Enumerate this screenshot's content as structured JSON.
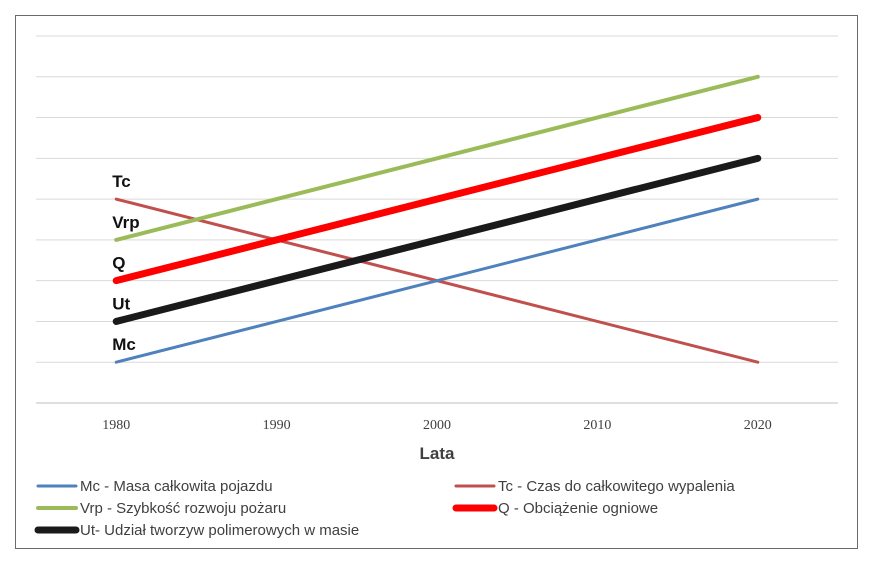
{
  "chart_data": {
    "type": "line",
    "xlabel": "Lata",
    "ylabel": "",
    "title": "",
    "x": [
      1980,
      2020
    ],
    "x_ticks": [
      "1980",
      "1990",
      "2000",
      "2010",
      "2020"
    ],
    "xlim": [
      1975,
      2025
    ],
    "ylim": [
      0,
      9
    ],
    "y_tick_labels": false,
    "grid": true,
    "legend_position": "bottom",
    "series": [
      {
        "name": "Mc - Masa całkowita pojazdu",
        "short": "Mc",
        "values": [
          1,
          5
        ],
        "color": "#4f81bd",
        "width": 3
      },
      {
        "name": "Tc - Czas do całkowitego wypalenia",
        "short": "Tc",
        "values": [
          5,
          1
        ],
        "color": "#c0504d",
        "width": 3
      },
      {
        "name": "Vrp - Szybkość rozwoju pożaru",
        "short": "Vrp",
        "values": [
          4,
          8
        ],
        "color": "#9bbb59",
        "width": 4
      },
      {
        "name": "Q - Obciążenie ogniowe",
        "short": "Q",
        "values": [
          3,
          7
        ],
        "color": "#ff0000",
        "width": 7
      },
      {
        "name": "Ut- Udział tworzyw polimerowych w masie",
        "short": "Ut",
        "values": [
          2,
          6
        ],
        "color": "#1a1a1a",
        "width": 7
      }
    ]
  }
}
